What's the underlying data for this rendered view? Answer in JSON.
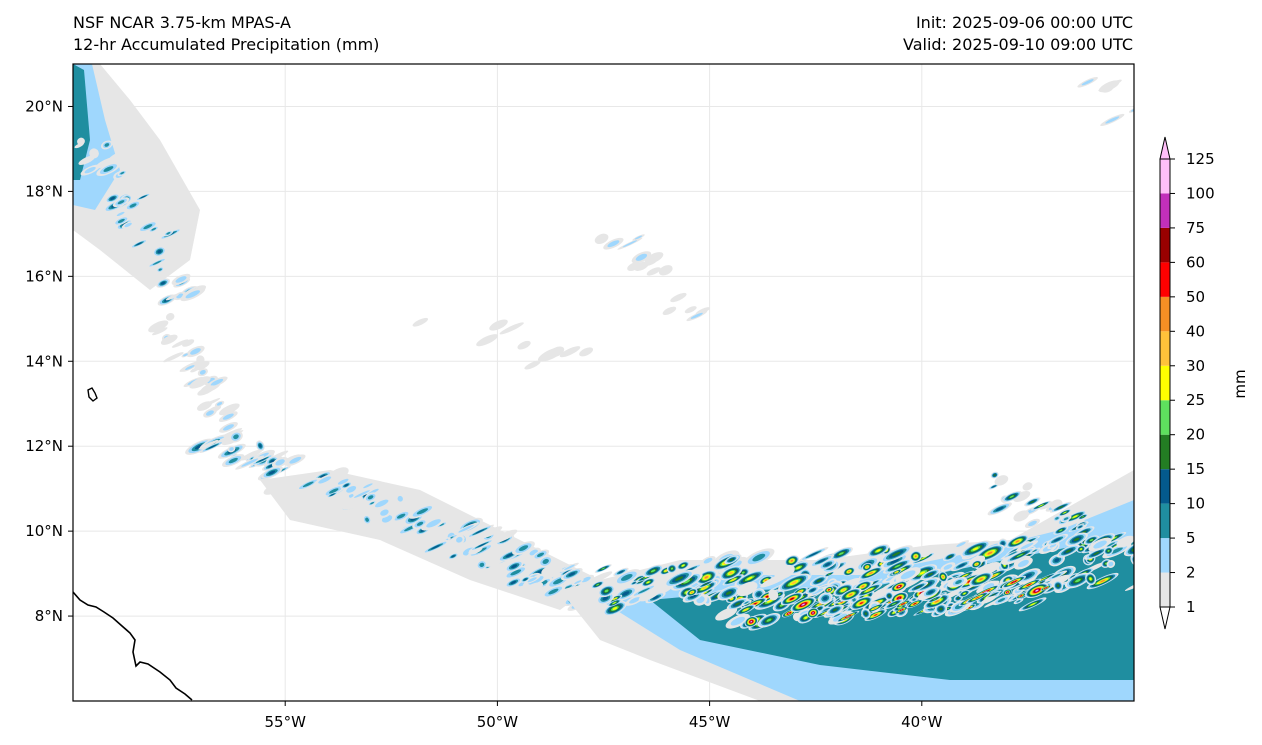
{
  "header": {
    "model": "NSF NCAR 3.75-km MPAS-A",
    "field": "12-hr Accumulated Precipitation (mm)",
    "init": "Init: 2025-09-06 00:00 UTC",
    "valid": "Valid: 2025-09-10 09:00 UTC"
  },
  "map": {
    "lon_range": [
      -60,
      -35
    ],
    "lat_range": [
      6,
      21
    ],
    "lon_ticks": [
      {
        "value": -55,
        "label": "55°W"
      },
      {
        "value": -50,
        "label": "50°W"
      },
      {
        "value": -45,
        "label": "45°W"
      },
      {
        "value": -40,
        "label": "40°W"
      }
    ],
    "lat_ticks": [
      {
        "value": 20,
        "label": "20°N"
      },
      {
        "value": 18,
        "label": "18°N"
      },
      {
        "value": 16,
        "label": "16°N"
      },
      {
        "value": 14,
        "label": "14°N"
      },
      {
        "value": 12,
        "label": "12°N"
      },
      {
        "value": 10,
        "label": "10°N"
      },
      {
        "value": 8,
        "label": "8°N"
      }
    ]
  },
  "colorbar": {
    "unit_label": "mm",
    "levels": [
      "1",
      "2",
      "5",
      "10",
      "15",
      "20",
      "25",
      "30",
      "40",
      "50",
      "60",
      "75",
      "100",
      "125"
    ],
    "colors": [
      "#e6e6e6",
      "#9fd7fd",
      "#1f8ea0",
      "#045a8d",
      "#237d23",
      "#5ee05e",
      "#ffff00",
      "#ffc23a",
      "#f58f24",
      "#ff0000",
      "#990000",
      "#c22fbb",
      "#ffbff9"
    ]
  },
  "colors": {
    "frame": "#000000",
    "grid": "#e8e8e8",
    "coast": "#000000"
  }
}
